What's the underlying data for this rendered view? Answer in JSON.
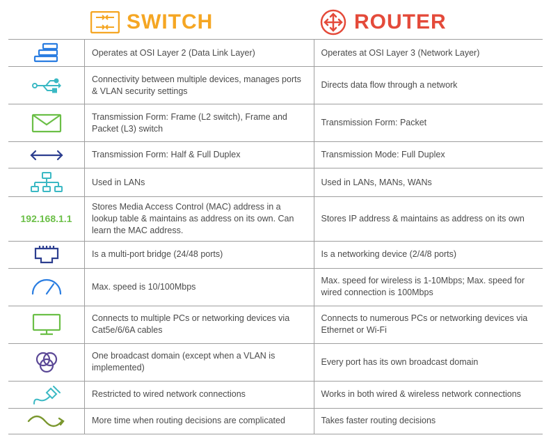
{
  "colors": {
    "switch_title": "#f5a623",
    "router_title": "#e44a3a",
    "border": "#9e9e9e",
    "text": "#4a4a4a",
    "icon_blue": "#2a7de1",
    "icon_cyan": "#3bb9c4",
    "icon_green": "#6bbf47",
    "icon_navy": "#2c3e8f",
    "icon_purple": "#5b4896",
    "icon_olive": "#7a972e"
  },
  "headers": {
    "switch_label": "SWITCH",
    "router_label": "ROUTER"
  },
  "rows": [
    {
      "icon": "stack",
      "switch": "Operates at OSI Layer 2 (Data Link Layer)",
      "router": "Operates at OSI Layer 3 (Network Layer)"
    },
    {
      "icon": "usb",
      "switch": "Connectivity between multiple devices, manages ports & VLAN security settings",
      "router": "Directs data flow through a network",
      "tall": true
    },
    {
      "icon": "envelope",
      "switch": "Transmission Form: Frame (L2 switch), Frame and Packet (L3) switch",
      "router": "Transmission Form: Packet",
      "tall": true
    },
    {
      "icon": "arrows",
      "switch": "Transmission Form: Half & Full Duplex",
      "router": "Transmission Mode: Full Duplex"
    },
    {
      "icon": "lan",
      "switch": "Used in LANs",
      "router": "Used in LANs, MANs, WANs"
    },
    {
      "icon": "ip",
      "ip_text": "192.168.1.1",
      "switch": "Stores Media Access Control (MAC) address in a lookup table & maintains as address on its own. Can learn the MAC address.",
      "router": "Stores IP address & maintains as address on its own",
      "xtall": true
    },
    {
      "icon": "port",
      "switch": "Is a multi-port bridge (24/48 ports)",
      "router": "Is a networking device (2/4/8 ports)"
    },
    {
      "icon": "gauge",
      "switch": "Max. speed is 10/100Mbps",
      "router": "Max. speed for wireless is 1-10Mbps; Max. speed for wired connection is 100Mbps",
      "tall": true
    },
    {
      "icon": "monitor",
      "switch": "Connects to multiple PCs or networking devices via Cat5e/6/6A cables",
      "router": "Connects to numerous PCs or networking devices via Ethernet or Wi-Fi",
      "tall": true
    },
    {
      "icon": "venn",
      "switch": "One broadcast domain (except when a VLAN is implemented)",
      "router": "Every port has its own broadcast domain",
      "tall": true
    },
    {
      "icon": "plug",
      "switch": "Restricted to wired network connections",
      "router": "Works in both wired & wireless network connections"
    },
    {
      "icon": "wave",
      "switch": "More time when routing decisions are complicated",
      "router": "Takes faster routing decisions"
    }
  ]
}
